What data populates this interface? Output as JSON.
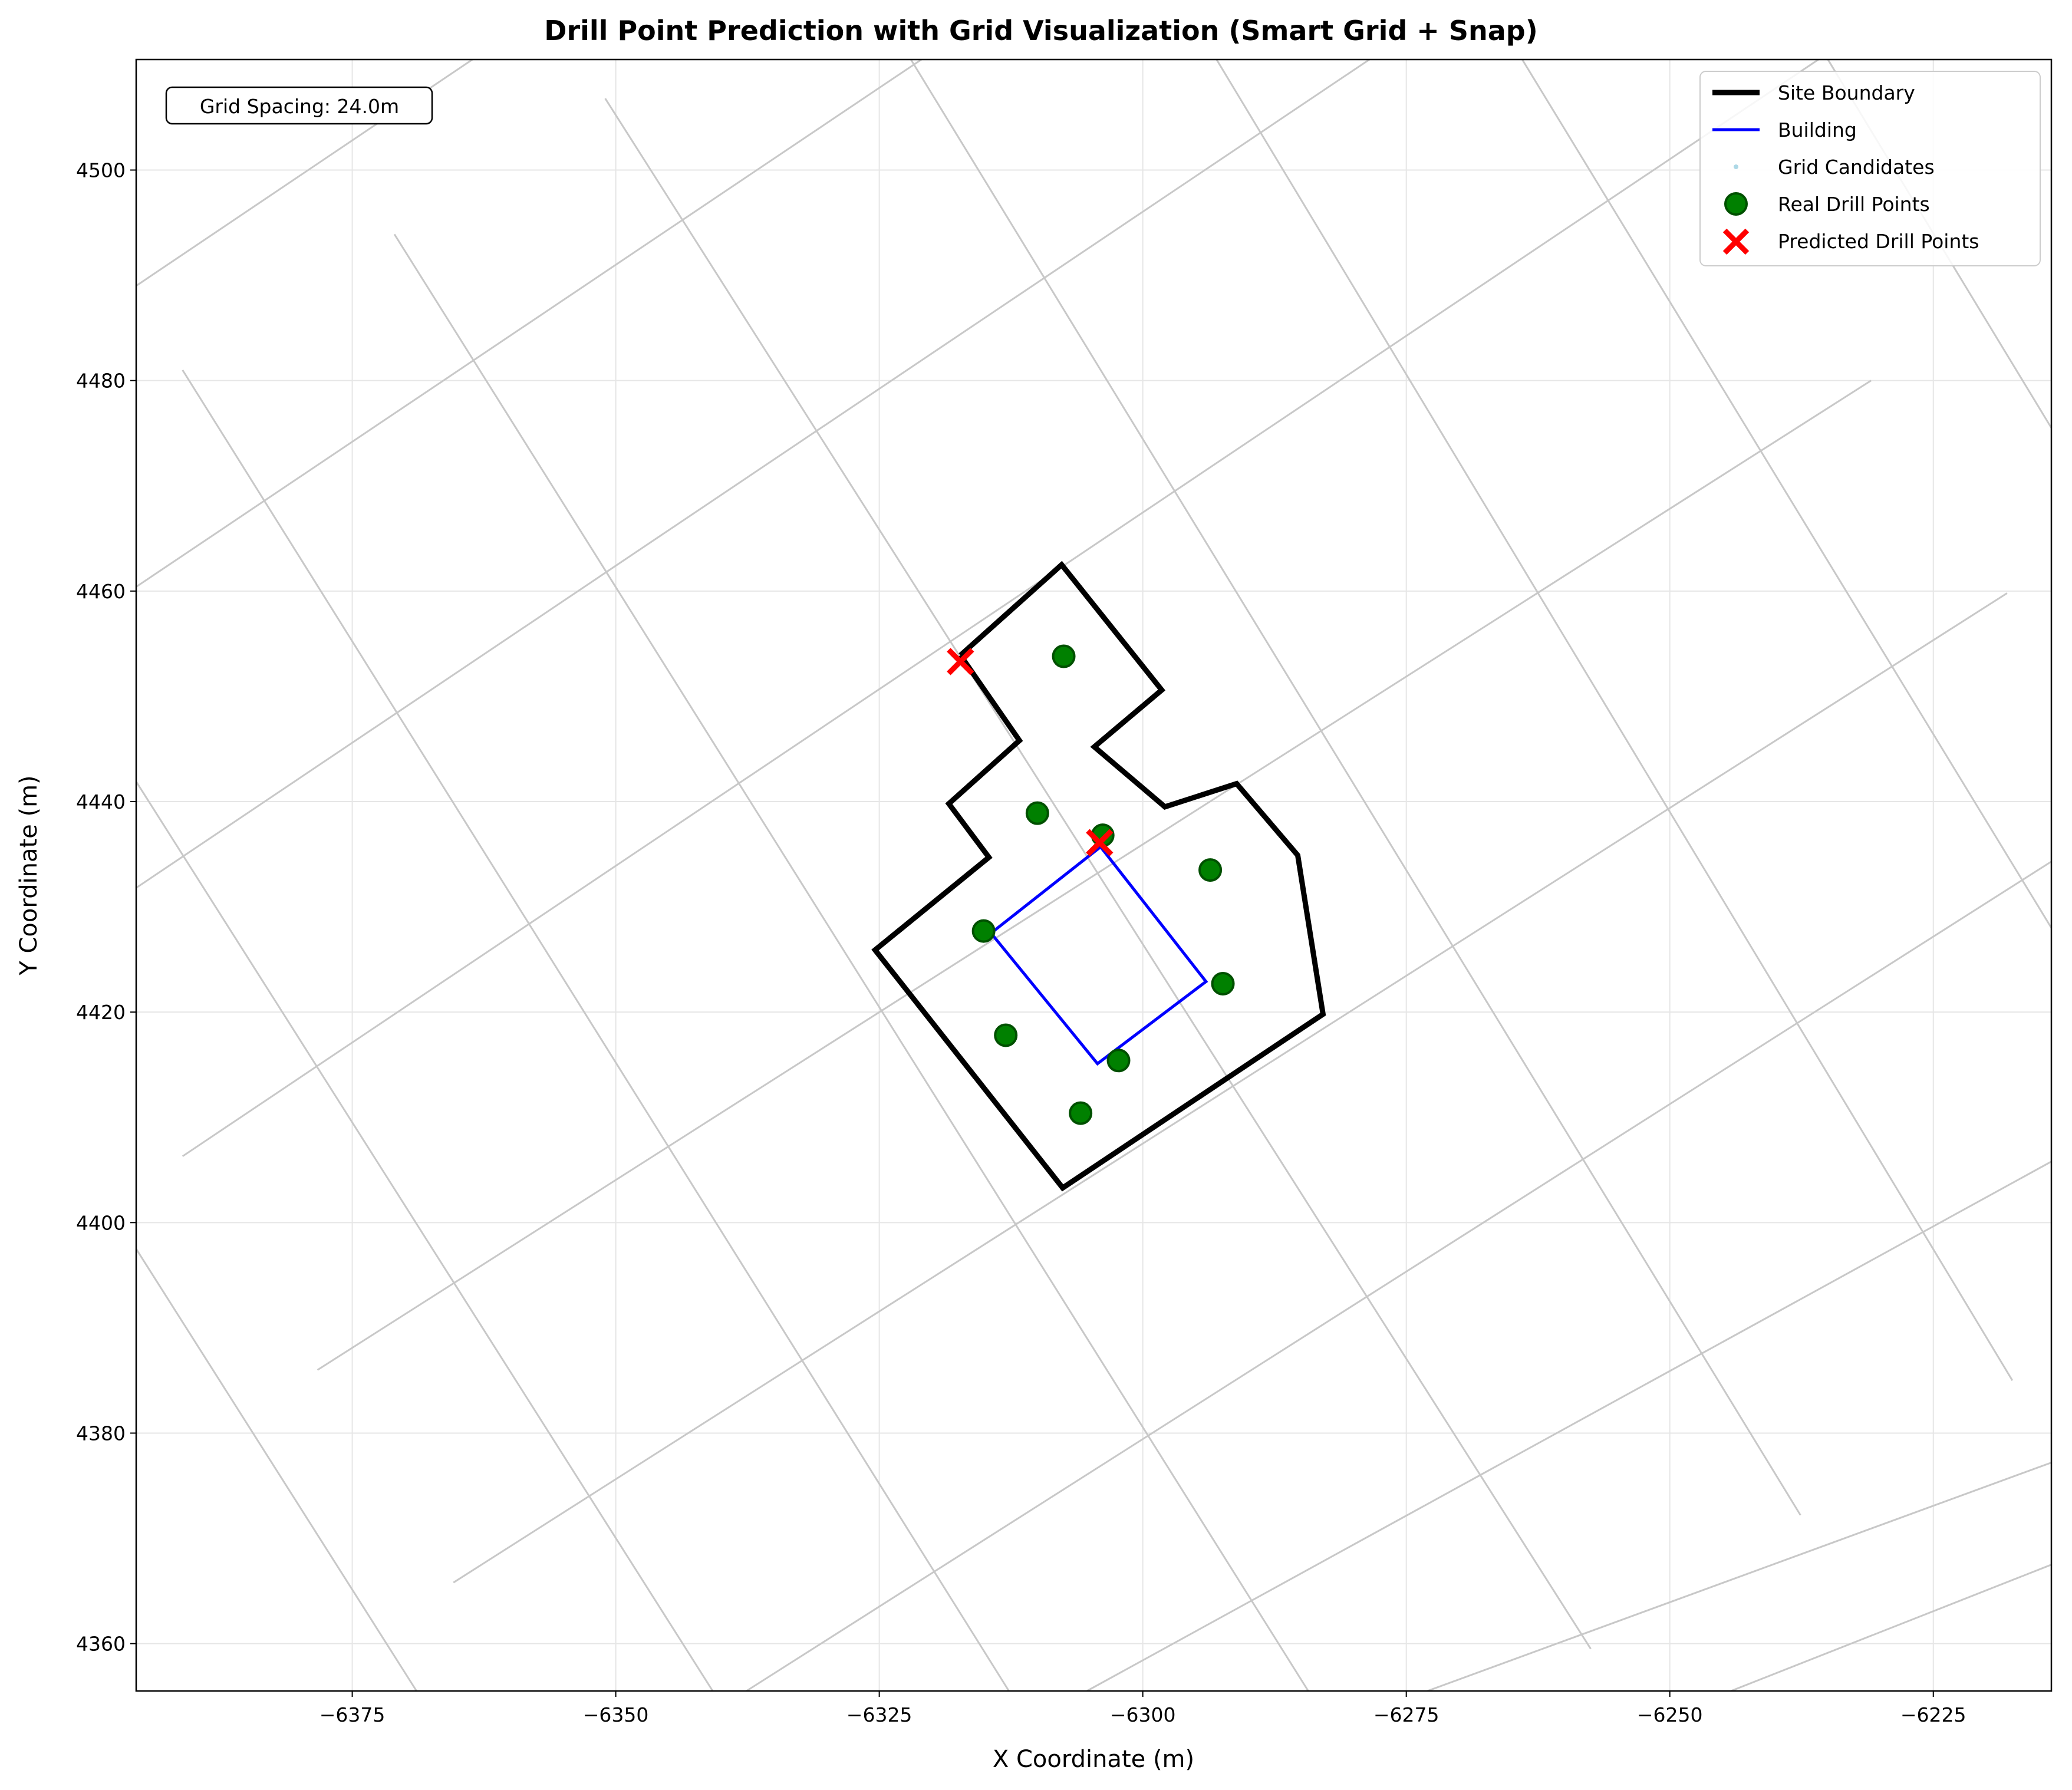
{
  "chart_data": {
    "type": "scatter",
    "title": "Drill Point Prediction with Grid Visualization (Smart Grid + Snap)",
    "xlabel": "X Coordinate (m)",
    "ylabel": "Y Coordinate (m)",
    "xlim": [
      -6395.5,
      -6213.8
    ],
    "ylim": [
      4355.5,
      4510.5
    ],
    "xticks": [
      -6375,
      -6350,
      -6325,
      -6300,
      -6275,
      -6250,
      -6225
    ],
    "yticks": [
      4360,
      4380,
      4400,
      4420,
      4440,
      4460,
      4480,
      4500
    ],
    "grid": true,
    "annotation": "Grid Spacing: 24.0m",
    "legend_position": "top-right",
    "legend": [
      "Site Boundary",
      "Building",
      "Grid Candidates",
      "Real Drill Points",
      "Predicted Drill Points"
    ],
    "colors": {
      "site_boundary": "#000000",
      "building": "#0000ff",
      "grid_candidates": "#add8e6",
      "real_drill_points": "#006400",
      "predicted_drill_points": "#ff0000",
      "grid_lines": "#c8c8c8"
    },
    "site_boundary": [
      [
        -6317.3,
        4453.9
      ],
      [
        -6307.7,
        4462.5
      ],
      [
        -6298.2,
        4450.6
      ],
      [
        -6304.6,
        4445.2
      ],
      [
        -6297.9,
        4439.5
      ],
      [
        -6291.1,
        4441.7
      ],
      [
        -6285.3,
        4434.9
      ],
      [
        -6282.9,
        4419.8
      ],
      [
        -6307.6,
        4403.3
      ],
      [
        -6325.4,
        4425.9
      ],
      [
        -6314.6,
        4434.7
      ],
      [
        -6318.4,
        4439.8
      ],
      [
        -6311.7,
        4445.8
      ],
      [
        -6317.3,
        4453.9
      ]
    ],
    "building": [
      [
        -6314.4,
        4427.5
      ],
      [
        -6304.0,
        4435.7
      ],
      [
        -6294.0,
        4422.9
      ],
      [
        -6304.3,
        4415.1
      ],
      [
        -6314.4,
        4427.5
      ]
    ],
    "real_drill_points": [
      [
        -6307.5,
        4453.8
      ],
      [
        -6310.0,
        4438.9
      ],
      [
        -6303.8,
        4436.8
      ],
      [
        -6293.6,
        4433.5
      ],
      [
        -6315.1,
        4427.7
      ],
      [
        -6292.4,
        4422.7
      ],
      [
        -6313.0,
        4417.8
      ],
      [
        -6302.3,
        4415.4
      ],
      [
        -6305.9,
        4410.4
      ]
    ],
    "predicted_drill_points": [
      [
        -6317.3,
        4453.3
      ],
      [
        -6304.1,
        4436.1
      ]
    ],
    "grid_lines_set_a": [
      [
        [
          -6395.5,
          4489.0
        ],
        [
          -6363.6,
          4510.5
        ]
      ],
      [
        [
          -6395.5,
          4460.4
        ],
        [
          -6321.0,
          4510.5
        ]
      ],
      [
        [
          -6395.5,
          4431.8
        ],
        [
          -6278.5,
          4510.5
        ]
      ],
      [
        [
          -6391.1,
          4406.3
        ],
        [
          -6235.9,
          4510.5
        ]
      ],
      [
        [
          -6378.3,
          4386.0
        ],
        [
          -6230.9,
          4480.0
        ]
      ],
      [
        [
          -6365.4,
          4365.8
        ],
        [
          -6218.0,
          4459.8
        ]
      ],
      [
        [
          -6337.6,
          4355.5
        ],
        [
          -6213.8,
          4434.3
        ]
      ],
      [
        [
          -6305.3,
          4355.5
        ],
        [
          -6213.8,
          4405.8
        ]
      ],
      [
        [
          -6273.0,
          4355.5
        ],
        [
          -6213.8,
          4377.2
        ]
      ],
      [
        [
          -6244.2,
          4355.5
        ],
        [
          -6213.8,
          4367.5
        ]
      ]
    ],
    "grid_lines_set_b": [
      [
        [
          -6395.5,
          4397.5
        ],
        [
          -6368.9,
          4355.5
        ]
      ],
      [
        [
          -6395.5,
          4441.9
        ],
        [
          -6340.8,
          4355.5
        ]
      ],
      [
        [
          -6391.1,
          4481.0
        ],
        [
          -6312.7,
          4355.5
        ]
      ],
      [
        [
          -6371.0,
          4493.9
        ],
        [
          -6284.3,
          4355.5
        ]
      ],
      [
        [
          -6351.0,
          4506.8
        ],
        [
          -6257.5,
          4359.5
        ]
      ],
      [
        [
          -6322.0,
          4510.5
        ],
        [
          -6237.6,
          4372.2
        ]
      ],
      [
        [
          -6293.0,
          4510.5
        ],
        [
          -6217.5,
          4385.0
        ]
      ],
      [
        [
          -6264.0,
          4510.5
        ],
        [
          -6213.8,
          4428.0
        ]
      ],
      [
        [
          -6235.0,
          4510.5
        ],
        [
          -6213.8,
          4475.5
        ]
      ]
    ]
  }
}
